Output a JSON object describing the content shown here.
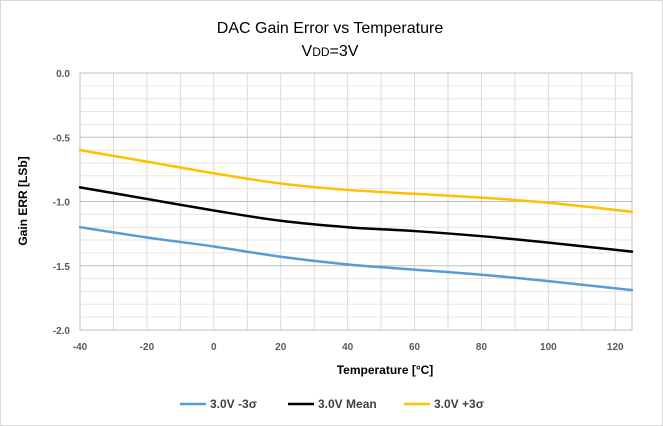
{
  "chart_data": {
    "type": "line",
    "title": "DAC Gain Error vs Temperature",
    "subtitle_main": "V",
    "subtitle_sub": "DD",
    "subtitle_tail": "=3V",
    "xlabel": "Temperature [°C]",
    "ylabel": "Gain ERR [LSb]",
    "xlim": [
      -40,
      125
    ],
    "ylim": [
      -2.0,
      0.0
    ],
    "x_ticks": [
      -40,
      -20,
      0,
      20,
      40,
      60,
      80,
      100,
      120
    ],
    "x_tick_labels": [
      "-40",
      "-20",
      "0",
      "20",
      "40",
      "60",
      "80",
      "100",
      "120"
    ],
    "y_ticks": [
      0.0,
      -0.5,
      -1.0,
      -1.5,
      -2.0
    ],
    "y_tick_labels": [
      "0.0",
      "-0.5",
      "-1.0",
      "-1.5",
      "-2.0"
    ],
    "grid": true,
    "legend_position": "bottom",
    "x": [
      -40,
      -20,
      0,
      20,
      40,
      60,
      80,
      100,
      125
    ],
    "series": [
      {
        "name": "3.0V -3σ",
        "color": "#5b9bd5",
        "values": [
          -1.2,
          -1.28,
          -1.35,
          -1.43,
          -1.49,
          -1.53,
          -1.57,
          -1.62,
          -1.69
        ]
      },
      {
        "name": "3.0V Mean",
        "color": "#000000",
        "values": [
          -0.89,
          -0.98,
          -1.07,
          -1.15,
          -1.2,
          -1.23,
          -1.27,
          -1.32,
          -1.39
        ]
      },
      {
        "name": "3.0V +3σ",
        "color": "#ffc000",
        "values": [
          -0.6,
          -0.69,
          -0.78,
          -0.86,
          -0.91,
          -0.94,
          -0.97,
          -1.01,
          -1.08
        ]
      }
    ]
  }
}
